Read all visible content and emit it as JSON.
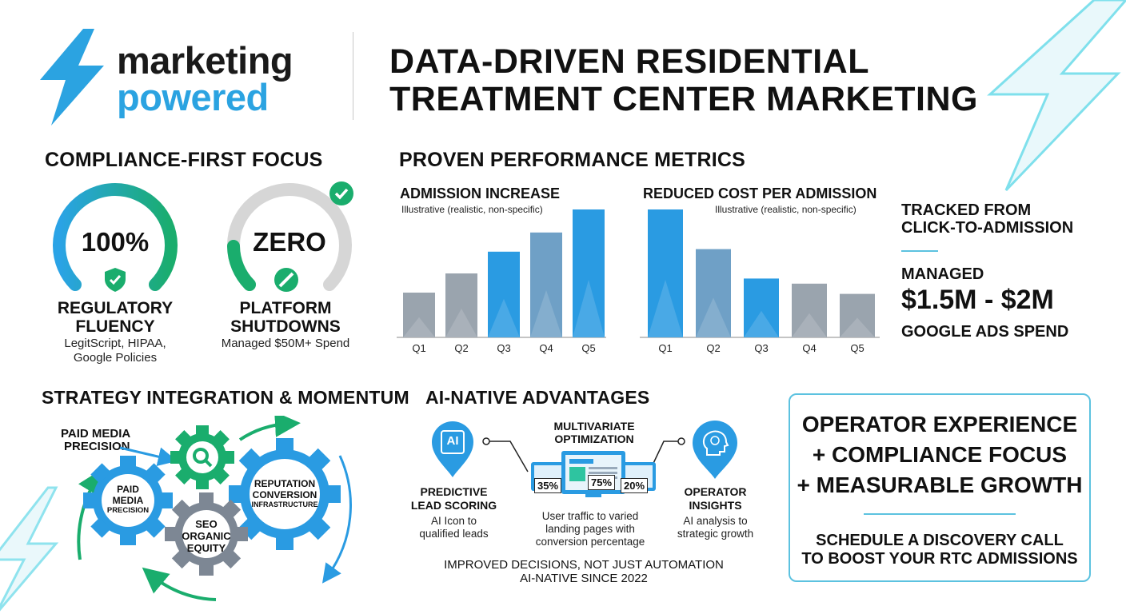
{
  "brand": {
    "line1": "marketing",
    "line2": "powered",
    "accent": "#29a6e0",
    "icon": "lightning-bolt-icon"
  },
  "headline": {
    "line1": "DATA-DRIVEN RESIDENTIAL",
    "line2": "TREATMENT CENTER MARKETING"
  },
  "compliance": {
    "title": "COMPLIANCE-FIRST FOCUS",
    "gauges": [
      {
        "value": "100%",
        "label_line1": "REGULATORY",
        "label_line2": "FLUENCY",
        "sub_line1": "LegitScript, HIPAA,",
        "sub_line2": "Google Policies",
        "icon": "shield-check-icon"
      },
      {
        "value": "ZERO",
        "label_line1": "PLATFORM",
        "label_line2": "SHUTDOWNS",
        "sub_line1": "Managed $50M+ Spend",
        "icon": "no-sign-icon",
        "badge_icon": "check-circle-icon"
      }
    ]
  },
  "metrics": {
    "title": "PROVEN PERFORMANCE METRICS",
    "tracked_line1": "TRACKED FROM",
    "tracked_line2": "CLICK-TO-ADMISSION",
    "managed_label": "MANAGED",
    "managed_value": "$1.5M - $2M",
    "managed_sub": "GOOGLE ADS SPEND"
  },
  "chart_data": [
    {
      "type": "bar",
      "title": "ADMISSION INCREASE",
      "subtitle": "Illustrative (realistic, non-specific)",
      "categories": [
        "Q1",
        "Q2",
        "Q3",
        "Q4",
        "Q5"
      ],
      "values": [
        35,
        50,
        67,
        82,
        100
      ],
      "ylim": [
        0,
        100
      ],
      "colors": [
        "#9aa4ae",
        "#9aa4ae",
        "#2a9be2",
        "#6fa0c6",
        "#2a9be2"
      ]
    },
    {
      "type": "bar",
      "title": "REDUCED COST PER ADMISSION",
      "subtitle": "Illustrative (realistic, non-specific)",
      "categories": [
        "Q1",
        "Q2",
        "Q3",
        "Q4",
        "Q5"
      ],
      "values": [
        100,
        69,
        46,
        42,
        34
      ],
      "ylim": [
        0,
        100
      ],
      "colors": [
        "#2a9be2",
        "#6fa0c6",
        "#2a9be2",
        "#9aa4ae",
        "#9aa4ae"
      ]
    }
  ],
  "strategy": {
    "title": "STRATEGY INTEGRATION & MOMENTUM",
    "callout_line1": "PAID MEDIA",
    "callout_line2": "PRECISION",
    "gear_paid_1": "PAID",
    "gear_paid_2": "MEDIA",
    "gear_paid_3": "PRECISION",
    "gear_rep_1": "REPUTATION",
    "gear_rep_2": "CONVERSION",
    "gear_rep_3": "INFRASTRUCTURE",
    "gear_seo_1": "SEO",
    "gear_seo_2": "ORGANIC",
    "gear_seo_3": "EQUITY",
    "search_icon": "magnifier-icon"
  },
  "ai": {
    "title": "AI-NATIVE ADVANTAGES",
    "left_icon_text": "AI",
    "left_label_1": "PREDICTIVE",
    "left_label_2": "LEAD SCORING",
    "left_sub_1": "AI Icon to",
    "left_sub_2": "qualified leads",
    "center_label_1": "MULTIVARIATE",
    "center_label_2": "OPTIMIZATION",
    "pct_left": "35%",
    "pct_mid": "75%",
    "pct_right": "20%",
    "center_sub_1": "User traffic to varied",
    "center_sub_2": "landing pages with",
    "center_sub_3": "conversion percentage",
    "right_label_1": "OPERATOR",
    "right_label_2": "INSIGHTS",
    "right_sub_1": "AI analysis to",
    "right_sub_2": "strategic growth",
    "footer_1": "IMPROVED DECISIONS, NOT JUST AUTOMATION",
    "footer_2": "AI-NATIVE SINCE 2022"
  },
  "cta": {
    "line1": "OPERATOR EXPERIENCE",
    "line2": "+ COMPLIANCE FOCUS",
    "line3": "+ MEASURABLE GROWTH",
    "sub1": "SCHEDULE A DISCOVERY CALL",
    "sub2": "TO BOOST YOUR RTC ADMISSIONS"
  }
}
